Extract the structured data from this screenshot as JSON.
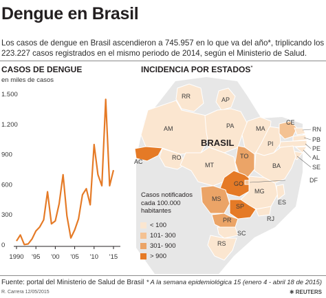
{
  "header": {
    "title": "Dengue en Brasil",
    "subtitle": "Los casos de dengue en Brasil ascendieron a  745.957 en lo que va del año*, triplicando los 223.227 casos registrados en el mismo periodo de 2014, según el Ministerio de Salud."
  },
  "line_chart": {
    "title": "CASOS DE DENGUE",
    "unit": "en miles de casos"
  },
  "map": {
    "title": "INCIDENCIA POR ESTADOS",
    "title_mark": "*",
    "country_label": "BRASIL",
    "colors": {
      "lt100": "#fbe6d0",
      "r101_300": "#f4c293",
      "r301_900": "#eba467",
      "gt900": "#e57a26",
      "border": "#ffffff",
      "neighbor": "#e7e7e7"
    },
    "legend_title": "Casos notificados cada 100.000 habitantes",
    "legend": [
      {
        "label": "< 100",
        "color": "#fbe6d0"
      },
      {
        "label": "101- 300",
        "color": "#f4c293"
      },
      {
        "label": "301- 900",
        "color": "#eba467"
      },
      {
        "label": "> 900",
        "color": "#e57a26"
      }
    ],
    "states": {
      "RR": "RR",
      "AP": "AP",
      "AM": "AM",
      "PA": "PA",
      "MA": "MA",
      "CE": "CE",
      "PI": "PI",
      "AC": "AC",
      "RO": "RO",
      "TO": "TO",
      "BA": "BA",
      "MT": "MT",
      "GO": "GO",
      "DF": "DF",
      "MG": "MG",
      "ES": "ES",
      "MS": "MS",
      "SP": "SP",
      "RJ": "RJ",
      "PR": "PR",
      "SC": "SC",
      "RS": "RS",
      "RN": "RN",
      "PB": "PB",
      "PE": "PE",
      "AL": "AL",
      "SE": "SE"
    }
  },
  "chart_data": {
    "type": "line",
    "title": "CASOS DE DENGUE",
    "ylabel": "en miles de casos",
    "xlabel": "",
    "x_tick_labels": [
      "1990",
      "'95",
      "'00",
      "'05",
      "'10",
      "'15"
    ],
    "x_ticks": [
      1990,
      1995,
      2000,
      2005,
      2010,
      2015
    ],
    "y_tick_labels": [
      "0",
      "300",
      "600",
      "900",
      "1.200",
      "1.500"
    ],
    "y_ticks": [
      0,
      300,
      600,
      900,
      1200,
      1500
    ],
    "xlim": [
      1990,
      2015
    ],
    "ylim": [
      0,
      1500
    ],
    "grid": false,
    "series": [
      {
        "x": [
          1990,
          1991,
          1992,
          1993,
          1994,
          1995,
          1996,
          1997,
          1998,
          1999,
          2000,
          2001,
          2002,
          2003,
          2004,
          2005,
          2006,
          2007,
          2008,
          2009,
          2010,
          2011,
          2012,
          2013,
          2014,
          2015
        ],
        "values": [
          40,
          100,
          5,
          10,
          60,
          140,
          180,
          250,
          530,
          210,
          240,
          410,
          700,
          290,
          70,
          150,
          260,
          500,
          560,
          400,
          1000,
          700,
          590,
          1450,
          590,
          745
        ],
        "color": "#e57a26"
      }
    ]
  },
  "footer": {
    "source": "Fuente:  portal del Ministerio de Salud de Brasil",
    "note": "* A la semana epidemiológica 15 (enero 4 - abril 18 de 2015)",
    "credit": "R. Carrera 12/05/2015",
    "brand": "REUTERS"
  }
}
